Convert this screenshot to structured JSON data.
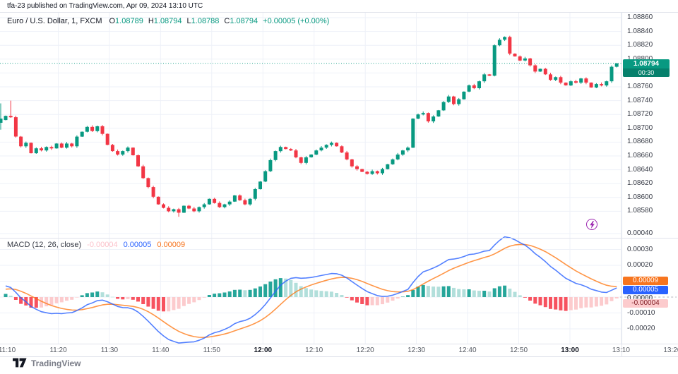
{
  "header": {
    "text": "tfa-23 published on TradingView.com, Apr 09, 2024 13:10 UTC"
  },
  "symbol_bar": {
    "title": "Euro / U.S. Dollar, 1, FXCM",
    "ohlc": [
      {
        "label": "O",
        "value": "1.08789"
      },
      {
        "label": "H",
        "value": "1.08794"
      },
      {
        "label": "L",
        "value": "1.08788"
      },
      {
        "label": "C",
        "value": "1.08794"
      }
    ],
    "change": "+0.00005 (+0.00%)"
  },
  "price_axis": {
    "labels": [
      "1.08860",
      "1.08840",
      "1.08820",
      "1.08800",
      "1.08760",
      "1.08740",
      "1.08720",
      "1.08700",
      "1.08680",
      "1.08660",
      "1.08640",
      "1.08620",
      "1.08600",
      "1.08580"
    ],
    "badge": {
      "price": "1.08794",
      "countdown": "00:30"
    }
  },
  "macd_panel": {
    "legend": {
      "title_params": "MACD (12, 26, close)",
      "hist_value": "-0.00004",
      "macd_value": "0.00005",
      "signal_value": "0.00009"
    },
    "axis_labels": [
      "0.00040",
      "0.00030",
      "0.00020",
      "0.00000",
      "-0.00010",
      "-0.00020"
    ],
    "badges": {
      "signal": "0.00009",
      "macd": "0.00005",
      "hist": "-0.00004"
    }
  },
  "time_axis": {
    "labels": [
      "11:10",
      "11:20",
      "11:30",
      "11:40",
      "11:50",
      "12:00",
      "12:10",
      "12:20",
      "12:30",
      "12:40",
      "12:50",
      "13:00",
      "13:10",
      "13:20"
    ],
    "bold": [
      "12:00",
      "13:00"
    ]
  },
  "footer": {
    "brand": "TradingView"
  },
  "colors": {
    "up": "#089981",
    "down": "#F23645",
    "macd_line": "#2962FF",
    "signal_line": "#FF6D00",
    "hist_grow_above": "#26A69A",
    "hist_fall_above": "#B2DFDB",
    "hist_fall_below": "#F7525F",
    "hist_grow_below": "#FCCBCD",
    "last_price": "#089981",
    "boost": "#9C27B0",
    "grid": "#eef1f8"
  },
  "chart_data": {
    "type": "candlestick",
    "symbol": "EUR/USD",
    "interval": "1 minute",
    "x_start": "11:10",
    "x_end": "13:10",
    "price_range": [
      1.0858,
      1.0886
    ],
    "closes": [
      1.08718,
      1.08716,
      1.08688,
      1.08674,
      1.08679,
      1.08664,
      1.08671,
      1.08668,
      1.08673,
      1.08671,
      1.08678,
      1.08672,
      1.08678,
      1.08674,
      1.08688,
      1.08695,
      1.08702,
      1.08696,
      1.08703,
      1.08692,
      1.08676,
      1.08667,
      1.08662,
      1.08667,
      1.08672,
      1.08661,
      1.08645,
      1.08628,
      1.08615,
      1.08601,
      1.0859,
      1.08585,
      1.0858,
      1.08583,
      1.08578,
      1.08588,
      1.08584,
      1.0858,
      1.08586,
      1.0859,
      1.08598,
      1.08592,
      1.08586,
      1.0859,
      1.08594,
      1.08603,
      1.08596,
      1.0859,
      1.08598,
      1.08612,
      1.08623,
      1.08638,
      1.08654,
      1.08667,
      1.08673,
      1.0867,
      1.08668,
      1.08658,
      1.0865,
      1.08658,
      1.08662,
      1.08668,
      1.08672,
      1.08676,
      1.08679,
      1.08674,
      1.08665,
      1.08655,
      1.08645,
      1.08641,
      1.08637,
      1.08634,
      1.08638,
      1.08635,
      1.08641,
      1.08648,
      1.08655,
      1.08662,
      1.08668,
      1.08672,
      1.08714,
      1.0872,
      1.08722,
      1.0871,
      1.08717,
      1.08726,
      1.08738,
      1.08746,
      1.08735,
      1.08742,
      1.08753,
      1.08762,
      1.08758,
      1.08768,
      1.08778,
      1.08776,
      1.0882,
      1.08828,
      1.08832,
      1.08808,
      1.08804,
      1.08798,
      1.08801,
      1.08791,
      1.08782,
      1.08786,
      1.08778,
      1.0877,
      1.08774,
      1.08766,
      1.08762,
      1.08768,
      1.08766,
      1.08772,
      1.08766,
      1.08759,
      1.08764,
      1.08762,
      1.08768,
      1.08789,
      1.08794
    ],
    "edge_candle": {
      "open": 1.08708,
      "close": 1.08714,
      "high": 1.08736,
      "low": 1.08698
    },
    "last_candle": {
      "open": 1.08789,
      "high": 1.08794,
      "low": 1.08788,
      "close": 1.08794
    },
    "wick_overrides": {
      "1": {
        "high": 1.0874
      },
      "34": {
        "low": 1.08572
      }
    },
    "last_price": 1.08794,
    "indicator": {
      "type": "MACD",
      "fast": 12,
      "slow": 26,
      "signal": 9,
      "source": "close",
      "last_values": {
        "histogram": -4e-05,
        "macd": 5e-05,
        "signal": 9e-05
      },
      "value_range": [
        -0.0002,
        0.0004
      ]
    }
  }
}
